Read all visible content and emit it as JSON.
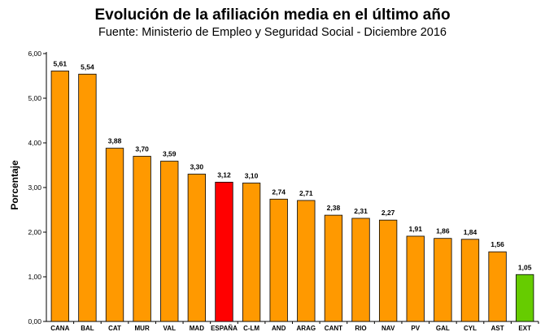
{
  "chart_data": {
    "type": "bar",
    "title": "Evolución de la afiliación media en el último año",
    "subtitle": "Fuente: Ministerio de Empleo y Seguridad Social - Diciembre 2016",
    "xlabel": "",
    "ylabel": "Porcentaje",
    "ylim": [
      0,
      6
    ],
    "yticks": [
      0,
      1,
      2,
      3,
      4,
      5,
      6
    ],
    "ytick_labels": [
      "0,00",
      "1,00",
      "2,00",
      "3,00",
      "4,00",
      "5,00",
      "6,00"
    ],
    "categories": [
      "CANA",
      "BAL",
      "CAT",
      "MUR",
      "VAL",
      "MAD",
      "ESPAÑA",
      "C-LM",
      "AND",
      "ARAG",
      "CANT",
      "RIO",
      "NAV",
      "PV",
      "GAL",
      "CYL",
      "AST",
      "EXT"
    ],
    "values": [
      5.61,
      5.54,
      3.88,
      3.7,
      3.59,
      3.3,
      3.12,
      3.1,
      2.74,
      2.71,
      2.38,
      2.31,
      2.27,
      1.91,
      1.86,
      1.84,
      1.56,
      1.05
    ],
    "value_labels": [
      "5,61",
      "5,54",
      "3,88",
      "3,70",
      "3,59",
      "3,30",
      "3,12",
      "3,10",
      "2,74",
      "2,71",
      "2,38",
      "2,31",
      "2,27",
      "1,91",
      "1,86",
      "1,84",
      "1,56",
      "1,05"
    ],
    "bar_colors": [
      "#FF9900",
      "#FF9900",
      "#FF9900",
      "#FF9900",
      "#FF9900",
      "#FF9900",
      "#FF0000",
      "#FF9900",
      "#FF9900",
      "#FF9900",
      "#FF9900",
      "#FF9900",
      "#FF9900",
      "#FF9900",
      "#FF9900",
      "#FF9900",
      "#FF9900",
      "#66CC00"
    ],
    "grid": false,
    "legend": "none"
  }
}
